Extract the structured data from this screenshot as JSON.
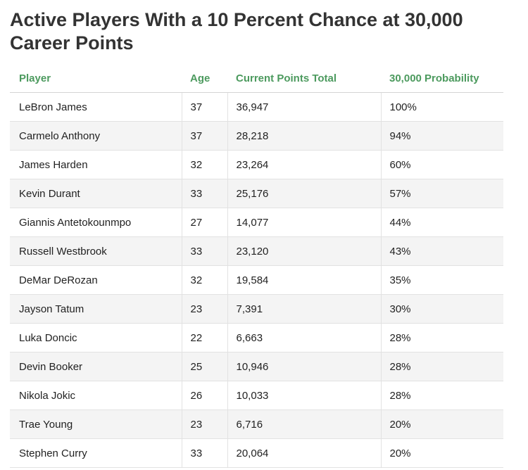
{
  "chart_data": {
    "type": "table",
    "title": "Active Players With a 10 Percent Chance at 30,000 Career Points",
    "columns": [
      "Player",
      "Age",
      "Current Points Total",
      "30,000 Probability"
    ],
    "rows": [
      [
        "LeBron James",
        "37",
        "36,947",
        "100%"
      ],
      [
        "Carmelo Anthony",
        "37",
        "28,218",
        "94%"
      ],
      [
        "James Harden",
        "32",
        "23,264",
        "60%"
      ],
      [
        "Kevin Durant",
        "33",
        "25,176",
        "57%"
      ],
      [
        "Giannis Antetokounmpo",
        "27",
        "14,077",
        "44%"
      ],
      [
        "Russell Westbrook",
        "33",
        "23,120",
        "43%"
      ],
      [
        "DeMar DeRozan",
        "32",
        "19,584",
        "35%"
      ],
      [
        "Jayson Tatum",
        "23",
        "7,391",
        "30%"
      ],
      [
        "Luka Doncic",
        "22",
        "6,663",
        "28%"
      ],
      [
        "Devin Booker",
        "25",
        "10,946",
        "28%"
      ],
      [
        "Nikola Jokic",
        "26",
        "10,033",
        "28%"
      ],
      [
        "Trae Young",
        "23",
        "6,716",
        "20%"
      ],
      [
        "Stephen Curry",
        "33",
        "20,064",
        "20%"
      ]
    ],
    "header_color": "#4c9a5e",
    "stripe_color": "#f4f4f4"
  }
}
